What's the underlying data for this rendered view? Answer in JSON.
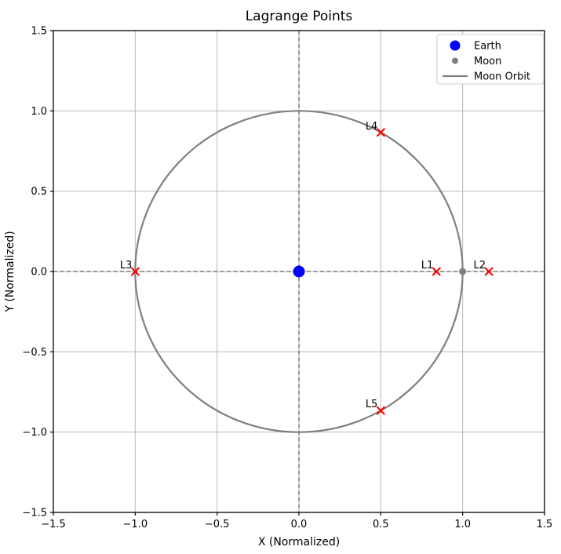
{
  "chart_data": {
    "type": "scatter",
    "title": "Lagrange Points",
    "xlabel": "X (Normalized)",
    "ylabel": "Y (Normalized)",
    "xlim": [
      -1.5,
      1.5
    ],
    "ylim": [
      -1.5,
      1.5
    ],
    "grid": true,
    "grid_color": "#b8b8b8",
    "xticks": {
      "values": [
        -1.5,
        -1.0,
        -0.5,
        0.0,
        0.5,
        1.0,
        1.5
      ],
      "labels": [
        "−1.5",
        "−1.0",
        "−0.5",
        "0.0",
        "0.5",
        "1.0",
        "1.5"
      ]
    },
    "yticks": {
      "values": [
        -1.5,
        -1.0,
        -0.5,
        0.0,
        0.5,
        1.0,
        1.5
      ],
      "labels": [
        "−1.5",
        "−1.0",
        "−0.5",
        "0.0",
        "0.5",
        "1.0",
        "1.5"
      ]
    },
    "reference_lines": {
      "x": 0.0,
      "y": 0.0,
      "style": "dashed",
      "color": "#333333"
    },
    "moon_orbit": {
      "center_x": 0.0,
      "center_y": 0.0,
      "radius": 1.0,
      "color": "#808080",
      "line_width": 2.2
    },
    "bodies": {
      "earth": {
        "label": "Earth",
        "x": 0.0,
        "y": 0.0,
        "color": "#0000ff",
        "marker": "circle",
        "radius_px": 7.5
      },
      "moon": {
        "label": "Moon",
        "x": 1.0,
        "y": 0.0,
        "color": "#808080",
        "marker": "circle",
        "radius_px": 4.5
      }
    },
    "lagrange_points": {
      "marker": "x",
      "color": "#ff0000",
      "points": [
        {
          "label": "L1",
          "x": 0.84,
          "y": 0.0
        },
        {
          "label": "L2",
          "x": 1.16,
          "y": 0.0
        },
        {
          "label": "L3",
          "x": -1.0,
          "y": 0.0
        },
        {
          "label": "L4",
          "x": 0.5,
          "y": 0.866
        },
        {
          "label": "L5",
          "x": 0.5,
          "y": -0.866
        }
      ]
    },
    "legend": {
      "position": "upper right",
      "entries": [
        {
          "label": "Earth",
          "marker": "circle",
          "color": "#0000ff",
          "size": "large"
        },
        {
          "label": "Moon",
          "marker": "circle",
          "color": "#808080",
          "size": "small"
        },
        {
          "label": "Moon Orbit",
          "marker": "line",
          "color": "#808080"
        }
      ]
    }
  }
}
